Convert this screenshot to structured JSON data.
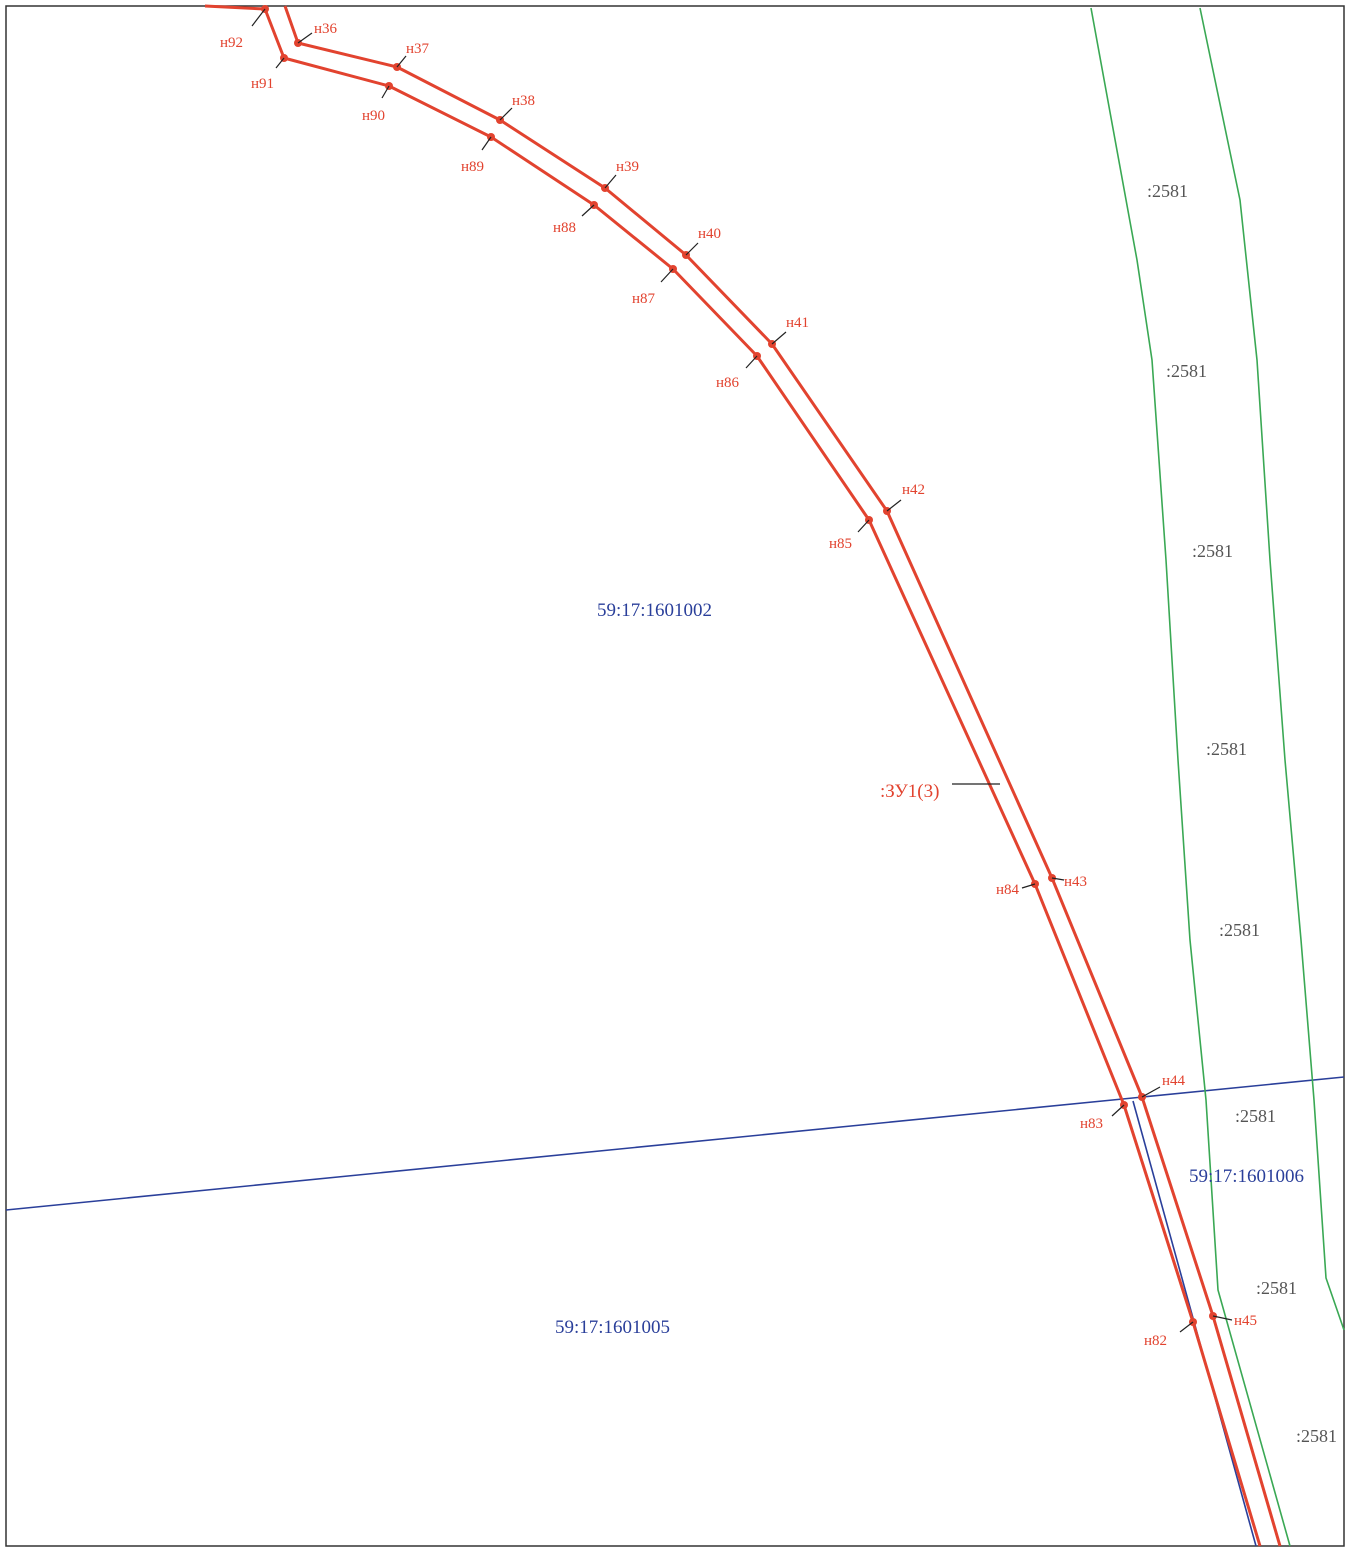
{
  "colors": {
    "plot_boundary": "#e2432f",
    "parcel_boundary": "#3aa854",
    "quarter_boundary": "#2a3f9a",
    "frame": "#333333",
    "parcel_text": "#555555"
  },
  "plot": {
    "label": ":ЗУ1(3)",
    "points": {
      "n36": "н36",
      "n37": "н37",
      "n38": "н38",
      "n39": "н39",
      "n40": "н40",
      "n41": "н41",
      "n42": "н42",
      "n43": "н43",
      "n44": "н44",
      "n45": "н45",
      "n82": "н82",
      "n83": "н83",
      "n84": "н84",
      "n85": "н85",
      "n86": "н86",
      "n87": "н87",
      "n88": "н88",
      "n89": "н89",
      "n90": "н90",
      "n91": "н91",
      "n92": "н92"
    }
  },
  "parcel": {
    "labels": [
      ":2581",
      ":2581",
      ":2581",
      ":2581",
      ":2581",
      ":2581",
      ":2581",
      ":2581"
    ]
  },
  "quarters": {
    "q1601002": "59:17:1601002",
    "q1601005": "59:17:1601005",
    "q1601006": "59:17:1601006"
  }
}
